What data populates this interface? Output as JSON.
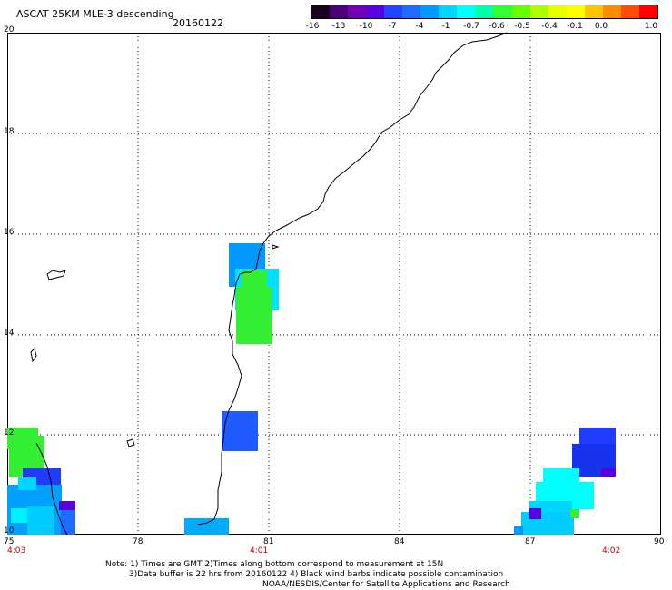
{
  "header": {
    "title": "ASCAT 25KM MLE-3 descending",
    "date": "20160122"
  },
  "colorbar": {
    "labels": [
      "-16",
      "-13",
      "-10",
      "-7",
      "-4",
      "-1",
      "-0.7",
      "-0.6",
      "-0.5",
      "-0.4",
      "-0.1",
      "0.0",
      "1.0"
    ],
    "colors": [
      "#1a001f",
      "#4b007a",
      "#7300b5",
      "#5a00e0",
      "#2244ff",
      "#1f6bff",
      "#0099ff",
      "#00d6ff",
      "#00ffff",
      "#00ffaa",
      "#33ff33",
      "#66ff00",
      "#aaff00",
      "#e8ff00",
      "#ffff00",
      "#ffc400",
      "#ff8c00",
      "#ff4d00",
      "#ff0000"
    ]
  },
  "axes": {
    "lat_labels": [
      "20",
      "18",
      "16",
      "14",
      "12",
      "10"
    ],
    "lon_labels": [
      "75",
      "78",
      "81",
      "84",
      "87",
      "90"
    ],
    "time_labels": [
      "4:03",
      "4:01",
      "4:02"
    ]
  },
  "notes": {
    "line1": "Note: 1) Times are GMT 2)Times along bottom correspond to measurement at 15N",
    "line2": "3)Data buffer is 22 hrs from 20160122 4) Black wind barbs indicate possible contamination",
    "line3": "NOAA/NESDIS/Center for Satellite Applications and Research"
  }
}
